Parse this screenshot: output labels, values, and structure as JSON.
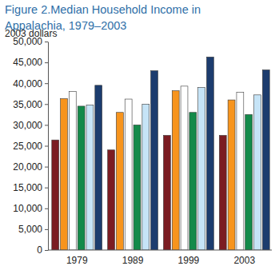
{
  "chart_data": {
    "type": "bar",
    "title": "Figure 2.Median Household Income in Appalachia, 1979–2003",
    "y_label": "2003 dollars",
    "categories": [
      "1979",
      "1989",
      "1999",
      "2003"
    ],
    "series": [
      {
        "color": "#7b1c22",
        "values": [
          26400,
          24000,
          27500,
          27500
        ]
      },
      {
        "color": "#f7941d",
        "values": [
          36300,
          33000,
          38200,
          36000
        ]
      },
      {
        "color": "#ffffff",
        "values": [
          38000,
          36200,
          39300,
          37800
        ]
      },
      {
        "color": "#138a4a",
        "values": [
          34500,
          30000,
          33000,
          32500
        ]
      },
      {
        "color": "#c6e4f7",
        "values": [
          34800,
          35000,
          39000,
          37200
        ]
      },
      {
        "color": "#1c3c6e",
        "values": [
          39500,
          43000,
          46300,
          43200
        ]
      }
    ],
    "ylim": [
      0,
      50000
    ],
    "yticks": [
      0,
      {
        "value": 5000,
        "label": "5,000"
      },
      {
        "value": 10000,
        "label": "10,000"
      },
      {
        "value": 15000,
        "label": "15,000"
      },
      {
        "value": 20000,
        "label": "20,000"
      },
      {
        "value": 25000,
        "label": "25,000"
      },
      {
        "value": 30000,
        "label": "30,000"
      },
      {
        "value": 35000,
        "label": "35,000"
      },
      {
        "value": 40000,
        "label": "40,000"
      },
      {
        "value": 45000,
        "label": "45,000"
      },
      {
        "value": 50000,
        "label": "50,000"
      }
    ],
    "grid": false
  }
}
